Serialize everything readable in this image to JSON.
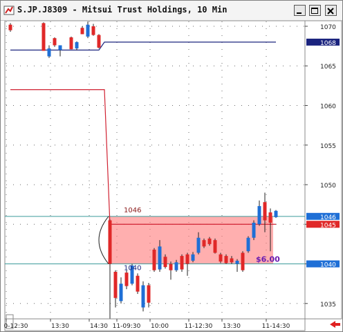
{
  "chart_data": {
    "type": "candlestick",
    "title": "S.JP.J8309 - Mitsui Trust Holdings, 10 Min",
    "categories": [
      null,
      "0-12:30",
      null,
      null,
      null,
      null,
      null,
      null,
      null,
      "13:30",
      null,
      null,
      null,
      null,
      null,
      null,
      "14:30",
      null,
      null,
      null,
      null,
      "11-09:30",
      null,
      null,
      null,
      null,
      null,
      "10:00",
      null,
      null,
      null,
      null,
      null,
      null,
      "11-12:30",
      null,
      null,
      null,
      null,
      null,
      "13:30",
      null,
      null,
      null,
      null,
      null,
      null,
      null,
      "11-14:30"
    ],
    "open": [
      1070.2,
      null,
      null,
      null,
      null,
      null,
      1070.4,
      1066.2,
      1068.5,
      1067.0,
      null,
      1068.6,
      1067.2,
      1069.8,
      1068.7,
      1070.0,
      1068.9,
      null,
      1045.5,
      1039.0,
      1035.3,
      1038.9,
      1037.5,
      1038.5,
      1034.5,
      1037.3,
      1041.8,
      1039.3,
      1040.9,
      1040.0,
      1039.2,
      1041.0,
      1041.2,
      1040.4,
      1041.4,
      1043.0,
      1043.2,
      1043.0,
      1041.2,
      1041.0,
      1040.7,
      1040.0,
      1041.4,
      1041.6,
      1043.3,
      1045.0,
      1047.8,
      1046.5,
      1045.9
    ],
    "high": [
      1070.4,
      null,
      null,
      null,
      null,
      null,
      1070.5,
      1067.6,
      1068.6,
      1067.6,
      null,
      1068.7,
      1068.1,
      1070.0,
      1070.6,
      1070.3,
      1069.0,
      null,
      1045.6,
      1039.2,
      1038.3,
      1039.2,
      1040.0,
      1038.8,
      1037.8,
      1037.6,
      1042.0,
      1043.0,
      1041.2,
      1040.3,
      1040.5,
      1041.2,
      1041.4,
      1041.5,
      1044.0,
      1043.2,
      1043.4,
      1043.2,
      1041.4,
      1041.2,
      1041.0,
      1040.6,
      1041.6,
      1043.5,
      1045.5,
      1048.0,
      1049.0,
      1047.0,
      1046.8
    ],
    "low": [
      1069.3,
      null,
      null,
      null,
      null,
      null,
      1066.9,
      1066.0,
      1067.4,
      1066.2,
      null,
      1067.1,
      1067.0,
      1069.0,
      1068.5,
      1068.8,
      1067.2,
      null,
      1033.1,
      1034.5,
      1035.0,
      1036.8,
      1037.3,
      1036.2,
      1034.0,
      1034.5,
      1039.0,
      1039.0,
      1039.4,
      1038.0,
      1039.0,
      1039.0,
      1038.5,
      1040.2,
      1041.2,
      1042.0,
      1042.3,
      1041.3,
      1040.1,
      1040.0,
      1040.0,
      1039.0,
      1039.0,
      1041.4,
      1043.0,
      1044.8,
      1044.0,
      1041.6,
      1045.8
    ],
    "close": [
      1069.5,
      null,
      null,
      null,
      null,
      null,
      1066.9,
      1067.2,
      1067.6,
      1067.6,
      null,
      1067.1,
      1068.0,
      1069.0,
      1070.2,
      1068.9,
      1067.3,
      null,
      1040.0,
      1035.7,
      1037.5,
      1037.2,
      1039.8,
      1036.5,
      1037.3,
      1035.1,
      1039.2,
      1042.2,
      1039.6,
      1039.2,
      1040.2,
      1039.3,
      1040.0,
      1041.2,
      1043.3,
      1042.2,
      1042.5,
      1041.4,
      1040.3,
      1040.1,
      1040.2,
      1040.4,
      1039.2,
      1043.3,
      1045.2,
      1047.3,
      1045.5,
      1045.2,
      1046.7
    ],
    "up_color": "#1f6fd6",
    "down_color": "#e02828",
    "lines": [
      {
        "color": "#1a237e",
        "values": [
          1067.0,
          1067.0,
          1067.0,
          1067.0,
          1067.0,
          1067.0,
          1067.0,
          1067.0,
          1067.0,
          1067.0,
          1067.0,
          1067.0,
          1067.0,
          1067.0,
          1067.0,
          1067.0,
          1067.0,
          1068,
          1068,
          1068,
          1068,
          1068,
          1068,
          1068,
          1068,
          1068,
          1068,
          1068,
          1068,
          1068,
          1068,
          1068,
          1068,
          1068,
          1068,
          1068,
          1068,
          1068,
          1068,
          1068,
          1068,
          1068,
          1068,
          1068,
          1068,
          1068,
          1068,
          1068,
          1068
        ]
      },
      {
        "color": "#d02030",
        "values": [
          1062,
          1062,
          1062,
          1062,
          1062,
          1062,
          1062,
          1062,
          1062,
          1062,
          1062,
          1062,
          1062,
          1062,
          1062,
          1062,
          1062,
          1062,
          1045,
          1045,
          1045,
          1045,
          1045,
          1045,
          1045,
          1045,
          1045,
          1045,
          1045,
          1045,
          1045,
          1045,
          1045,
          1045,
          1045,
          1045,
          1045,
          1045,
          1045,
          1045,
          1045,
          1045,
          1045,
          1045,
          1045,
          1045,
          1045,
          1045,
          1045
        ]
      }
    ],
    "measure": {
      "high": 1046,
      "low": 1040,
      "label": "$6.00",
      "from_index": 18,
      "to_index": 47,
      "color": "#ff7a7a",
      "line_color": "#3a9a9a"
    },
    "price_tags": [
      {
        "value": 1068,
        "color": "#1a237e"
      },
      {
        "value": 1046,
        "color": "#1f6fd6"
      },
      {
        "value": 1045,
        "color": "#e02828"
      },
      {
        "value": 1040,
        "color": "#1f6fd6"
      }
    ],
    "ylim": [
      1033.06,
      1070.61
    ],
    "yticks": [
      1035,
      1040,
      1045,
      1050,
      1055,
      1060,
      1065,
      1070
    ],
    "grid": true
  }
}
